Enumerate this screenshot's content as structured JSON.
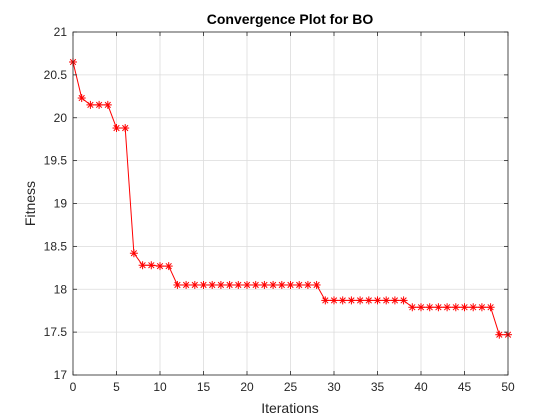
{
  "chart_data": {
    "type": "line",
    "title": "Convergence Plot for BO",
    "xlabel": "Iterations",
    "ylabel": "Fitness",
    "xlim": [
      0,
      50
    ],
    "ylim": [
      17,
      21
    ],
    "xticks": [
      0,
      5,
      10,
      15,
      20,
      25,
      30,
      35,
      40,
      45,
      50
    ],
    "yticks": [
      17,
      17.5,
      18,
      18.5,
      19,
      19.5,
      20,
      20.5,
      21
    ],
    "grid": true,
    "series": [
      {
        "color": "#ff0000",
        "marker": "asterisk",
        "x": [
          0,
          1,
          2,
          3,
          4,
          5,
          6,
          7,
          8,
          9,
          10,
          11,
          12,
          13,
          14,
          15,
          16,
          17,
          18,
          19,
          20,
          21,
          22,
          23,
          24,
          25,
          26,
          27,
          28,
          29,
          30,
          31,
          32,
          33,
          34,
          35,
          36,
          37,
          38,
          39,
          40,
          41,
          42,
          43,
          44,
          45,
          46,
          47,
          48,
          49,
          50
        ],
        "y": [
          20.65,
          20.23,
          20.15,
          20.15,
          20.15,
          19.88,
          19.88,
          18.42,
          18.28,
          18.28,
          18.27,
          18.27,
          18.05,
          18.05,
          18.05,
          18.05,
          18.05,
          18.05,
          18.05,
          18.05,
          18.05,
          18.05,
          18.05,
          18.05,
          18.05,
          18.05,
          18.05,
          18.05,
          18.05,
          17.87,
          17.87,
          17.87,
          17.87,
          17.87,
          17.87,
          17.87,
          17.87,
          17.87,
          17.87,
          17.79,
          17.79,
          17.79,
          17.79,
          17.79,
          17.79,
          17.79,
          17.79,
          17.79,
          17.79,
          17.47,
          17.47
        ]
      }
    ]
  }
}
